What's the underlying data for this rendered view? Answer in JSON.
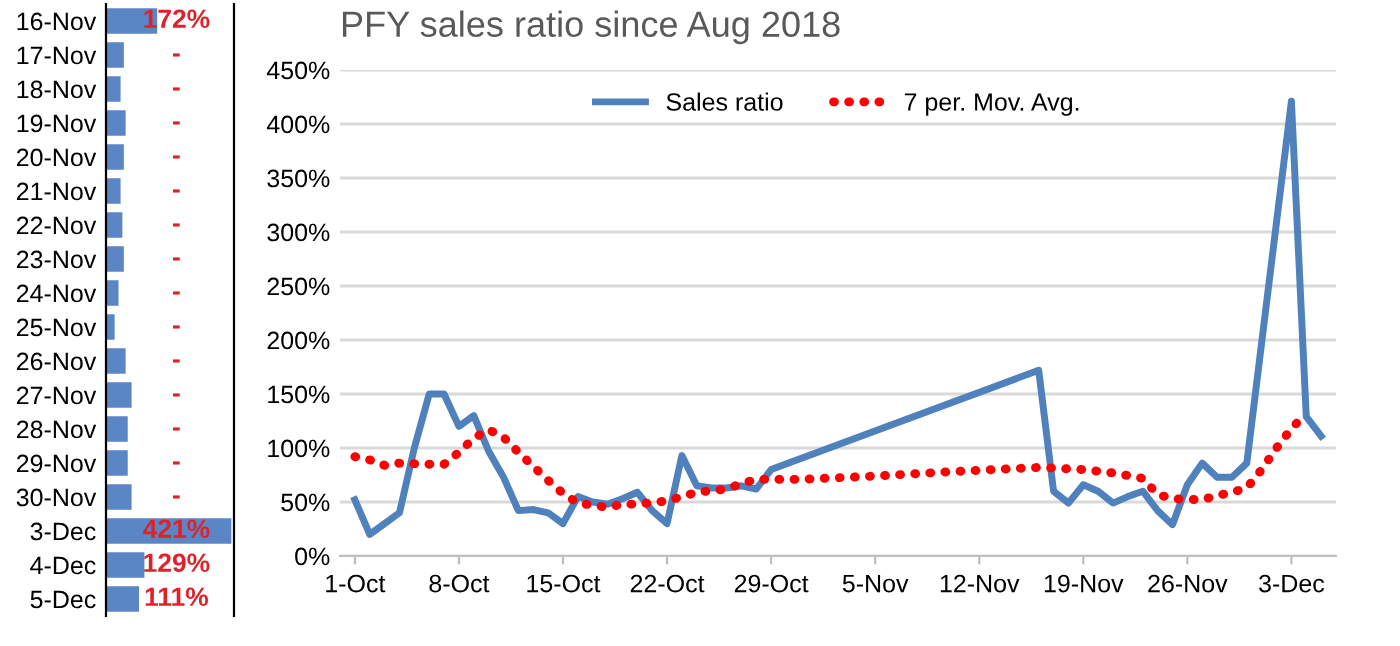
{
  "chart_data": [
    {
      "type": "bar",
      "orientation": "horizontal",
      "categories": [
        "16-Nov",
        "17-Nov",
        "18-Nov",
        "19-Nov",
        "20-Nov",
        "21-Nov",
        "22-Nov",
        "23-Nov",
        "24-Nov",
        "25-Nov",
        "26-Nov",
        "27-Nov",
        "28-Nov",
        "29-Nov",
        "30-Nov",
        "3-Dec",
        "4-Dec",
        "5-Dec"
      ],
      "values": [
        172,
        60,
        49,
        66,
        60,
        49,
        55,
        60,
        42,
        29,
        66,
        86,
        73,
        73,
        86,
        421,
        129,
        111
      ],
      "value_labels": [
        "172%",
        "-",
        "-",
        "-",
        "-",
        "-",
        "-",
        "-",
        "-",
        "-",
        "-",
        "-",
        "-",
        "-",
        "-",
        "421%",
        "129%",
        "111%"
      ],
      "color": "#5b86c5",
      "xlim": [
        0,
        430
      ],
      "tick_labels": "y",
      "grid": false
    },
    {
      "type": "line",
      "title": "PFY sales ratio since Aug 2018",
      "grid": "y",
      "legend": "top",
      "xlim": [
        "2018-09-30",
        "2018-12-06"
      ],
      "xticks": [
        {
          "value": "2018-10-01",
          "label": "1-Oct"
        },
        {
          "value": "2018-10-08",
          "label": "8-Oct"
        },
        {
          "value": "2018-10-15",
          "label": "15-Oct"
        },
        {
          "value": "2018-10-22",
          "label": "22-Oct"
        },
        {
          "value": "2018-10-29",
          "label": "29-Oct"
        },
        {
          "value": "2018-11-05",
          "label": "5-Nov"
        },
        {
          "value": "2018-11-12",
          "label": "12-Nov"
        },
        {
          "value": "2018-11-19",
          "label": "19-Nov"
        },
        {
          "value": "2018-11-26",
          "label": "26-Nov"
        },
        {
          "value": "2018-12-03",
          "label": "3-Dec"
        }
      ],
      "ylim": [
        0,
        450
      ],
      "yticks": [
        {
          "value": 0,
          "label": "0%"
        },
        {
          "value": 50,
          "label": "50%"
        },
        {
          "value": 100,
          "label": "100%"
        },
        {
          "value": 150,
          "label": "150%"
        },
        {
          "value": 200,
          "label": "200%"
        },
        {
          "value": 250,
          "label": "250%"
        },
        {
          "value": 300,
          "label": "300%"
        },
        {
          "value": 350,
          "label": "350%"
        },
        {
          "value": 400,
          "label": "400%"
        },
        {
          "value": 450,
          "label": "450%"
        }
      ],
      "series": [
        {
          "name": "Sales ratio",
          "color": "#4f81bd",
          "line_style": "solid",
          "x": [
            "2018-10-01",
            "2018-10-02",
            "2018-10-03",
            "2018-10-04",
            "2018-10-05",
            "2018-10-06",
            "2018-10-07",
            "2018-10-08",
            "2018-10-09",
            "2018-10-10",
            "2018-10-11",
            "2018-10-12",
            "2018-10-13",
            "2018-10-14",
            "2018-10-15",
            "2018-10-16",
            "2018-10-17",
            "2018-10-18",
            "2018-10-19",
            "2018-10-20",
            "2018-10-21",
            "2018-10-22",
            "2018-10-23",
            "2018-10-24",
            "2018-10-25",
            "2018-10-26",
            "2018-10-27",
            "2018-10-28",
            "2018-10-29",
            "2018-11-16",
            "2018-11-17",
            "2018-11-18",
            "2018-11-19",
            "2018-11-20",
            "2018-11-21",
            "2018-11-22",
            "2018-11-23",
            "2018-11-24",
            "2018-11-25",
            "2018-11-26",
            "2018-11-27",
            "2018-11-28",
            "2018-11-29",
            "2018-11-30",
            "2018-12-03",
            "2018-12-04",
            "2018-12-05"
          ],
          "values": [
            52,
            20,
            30,
            40,
            100,
            150,
            150,
            120,
            130,
            97,
            73,
            42,
            43,
            40,
            30,
            55,
            50,
            48,
            53,
            59,
            42,
            30,
            93,
            65,
            63,
            63,
            65,
            62,
            80,
            172,
            60,
            49,
            66,
            60,
            49,
            55,
            60,
            42,
            29,
            66,
            86,
            73,
            73,
            86,
            421,
            129,
            111
          ]
        },
        {
          "name": "7 per. Mov. Avg.",
          "color": "#ff0000",
          "line_style": "dotted",
          "x": [
            "2018-10-01",
            "2018-10-02",
            "2018-10-03",
            "2018-10-04",
            "2018-10-06",
            "2018-10-07",
            "2018-10-08",
            "2018-10-09",
            "2018-10-10",
            "2018-10-11",
            "2018-10-12",
            "2018-10-13",
            "2018-10-14",
            "2018-10-15",
            "2018-10-16",
            "2018-10-18",
            "2018-10-19",
            "2018-10-20",
            "2018-10-22",
            "2018-10-23",
            "2018-10-24",
            "2018-10-26",
            "2018-10-27",
            "2018-10-28",
            "2018-10-31",
            "2018-11-05",
            "2018-11-10",
            "2018-11-16",
            "2018-11-19",
            "2018-11-21",
            "2018-11-23",
            "2018-11-24",
            "2018-11-25",
            "2018-11-27",
            "2018-11-28",
            "2018-11-29",
            "2018-11-30",
            "2018-12-01",
            "2018-12-02",
            "2018-12-03",
            "2018-12-04"
          ],
          "values": [
            92,
            89,
            84,
            86,
            85,
            85,
            96,
            109,
            117,
            110,
            96,
            83,
            70,
            58,
            49,
            45,
            48,
            48,
            51,
            55,
            59,
            62,
            67,
            71,
            71,
            74,
            78,
            82,
            80,
            77,
            72,
            57,
            53,
            52,
            56,
            59,
            63,
            80,
            100,
            118,
            132
          ]
        }
      ]
    }
  ]
}
